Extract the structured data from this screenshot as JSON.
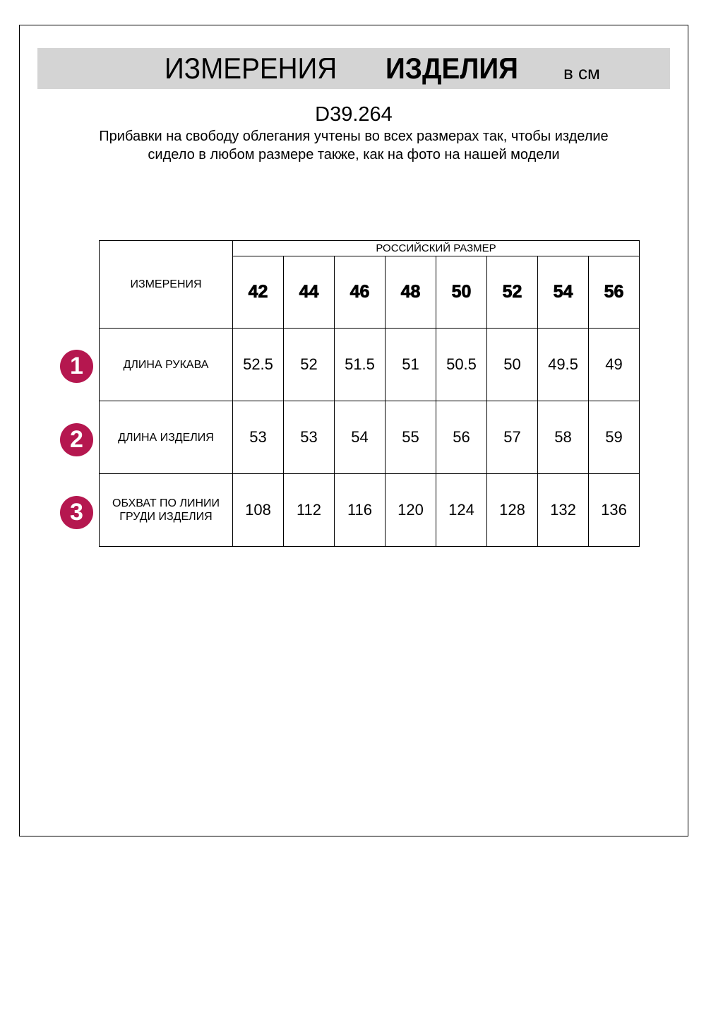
{
  "header": {
    "title_regular": "ИЗМЕРЕНИЯ",
    "title_bold": "ИЗДЕЛИЯ",
    "unit": "в см"
  },
  "product_code": "D39.264",
  "note": "Прибавки на свободу облегания учтены во всех размерах так, чтобы изделие сидело в любом размере также, как на фото на нашей модели",
  "table": {
    "corner_label": "ИЗМЕРЕНИЯ",
    "group_header": "РОССИЙСКИЙ РАЗМЕР",
    "sizes": [
      "42",
      "44",
      "46",
      "48",
      "50",
      "52",
      "54",
      "56"
    ],
    "rows": [
      {
        "badge": "1",
        "label": "ДЛИНА РУКАВА",
        "values": [
          "52.5",
          "52",
          "51.5",
          "51",
          "50.5",
          "50",
          "49.5",
          "49"
        ]
      },
      {
        "badge": "2",
        "label": "ДЛИНА ИЗДЕЛИЯ",
        "values": [
          "53",
          "53",
          "54",
          "55",
          "56",
          "57",
          "58",
          "59"
        ]
      },
      {
        "badge": "3",
        "label": "ОБХВАТ ПО ЛИНИИ ГРУДИ ИЗДЕЛИЯ",
        "values": [
          "108",
          "112",
          "116",
          "120",
          "124",
          "128",
          "132",
          "136"
        ]
      }
    ]
  },
  "colors": {
    "badge": "#b5174f",
    "banner": "#d4d4d4"
  }
}
